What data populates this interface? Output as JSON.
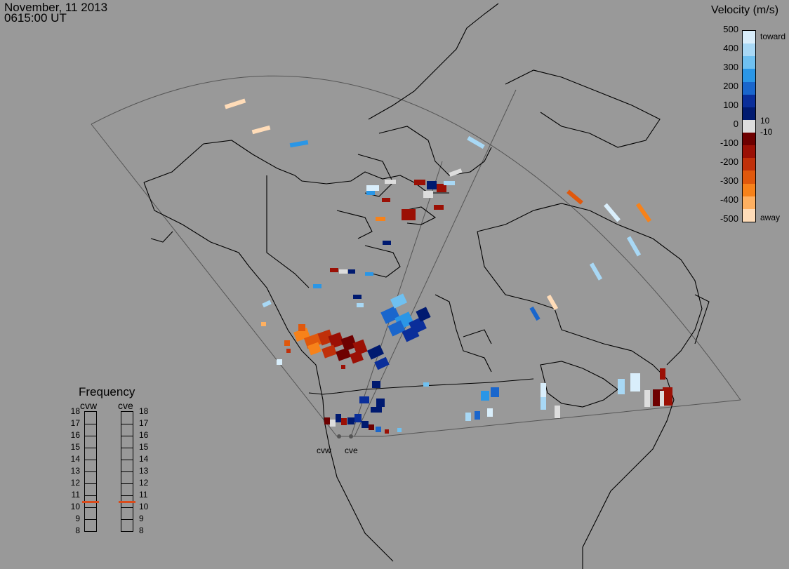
{
  "header": {
    "date": "November, 11 2013",
    "time": "0615:00 UT"
  },
  "velocity_legend": {
    "title": "Velocity (m/s)",
    "ticks": [
      "500",
      "400",
      "300",
      "200",
      "100",
      "0",
      "-100",
      "-200",
      "-300",
      "-400",
      "-500"
    ],
    "toward_label": "toward",
    "away_label": "away",
    "small_pos": "10",
    "small_neg": "-10",
    "colors": [
      "#d9eefb",
      "#a8d8f5",
      "#6fc0f0",
      "#2a96e6",
      "#1a66cc",
      "#0a2e9a",
      "#001a70",
      "#dddddd",
      "#6e0000",
      "#9b1005",
      "#c0300a",
      "#e0580c",
      "#f7821a",
      "#ffb060",
      "#ffdcb8"
    ]
  },
  "frequency": {
    "title": "Frequency",
    "left_label": "cvw",
    "right_label": "cve",
    "ticks": [
      "18",
      "17",
      "16",
      "15",
      "14",
      "13",
      "12",
      "11",
      "10",
      "9",
      "8"
    ],
    "cvw_freq_mhz": 10.5,
    "cve_freq_mhz": 10.5,
    "marker_color": "#d94a1a"
  },
  "radars": [
    "cvw",
    "cve"
  ],
  "colors": {
    "background": "#999999",
    "coast": "#000000",
    "fov": "#555555"
  }
}
